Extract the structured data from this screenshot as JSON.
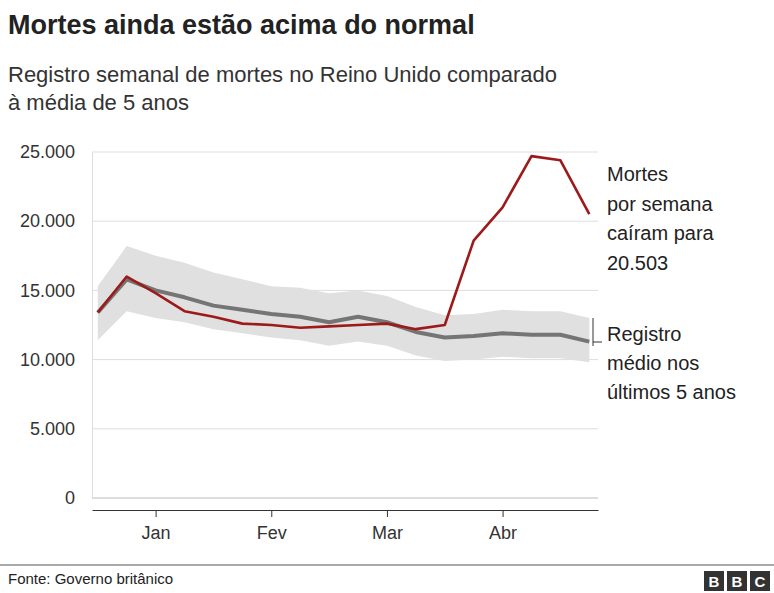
{
  "chart_data": {
    "type": "line",
    "title": "Mortes ainda estão acima do normal",
    "subtitle": [
      "Registro semanal de mortes no Reino Unido comparado",
      "à média de 5 anos"
    ],
    "source": "Fonte: Governo britânico",
    "logo": "BBC",
    "x": [
      0,
      1,
      2,
      3,
      4,
      5,
      6,
      7,
      8,
      9,
      10,
      11,
      12,
      13,
      14,
      15,
      16,
      17
    ],
    "xlim": [
      -0.2,
      17.3
    ],
    "xticks": [
      {
        "value": 2,
        "label": "Jan"
      },
      {
        "value": 6,
        "label": "Fev"
      },
      {
        "value": 10,
        "label": "Mar"
      },
      {
        "value": 14,
        "label": "Abr"
      }
    ],
    "ylim": [
      0,
      25000
    ],
    "yticks": [
      0,
      {
        "value": 5000,
        "label": "5.000"
      },
      {
        "value": 10000,
        "label": "10.000"
      },
      {
        "value": 15000,
        "label": "15.000"
      },
      {
        "value": 20000,
        "label": "20.000"
      },
      {
        "value": 25000,
        "label": "25.000"
      }
    ],
    "grid": true,
    "series": [
      {
        "color": "#9c1a1a",
        "annotation": [
          "Mortes",
          "por semana",
          "caíram para",
          "20.503"
        ],
        "values": [
          13400,
          16000,
          14800,
          13500,
          13100,
          12600,
          12500,
          12300,
          12400,
          12500,
          12600,
          12200,
          12500,
          18600,
          21000,
          24700,
          24400,
          20503
        ]
      },
      {
        "color": "#757575",
        "annotation": [
          "Registro",
          "médio nos",
          "últimos 5 anos"
        ],
        "values": [
          13400,
          15800,
          15000,
          14500,
          13900,
          13600,
          13300,
          13100,
          12700,
          13100,
          12700,
          12000,
          11600,
          11700,
          11900,
          11800,
          11800,
          11300
        ],
        "range_low": [
          11400,
          13500,
          13000,
          12700,
          12200,
          11900,
          11600,
          11400,
          11000,
          11300,
          11000,
          10300,
          9900,
          10000,
          10200,
          10100,
          10100,
          9800
        ],
        "range_high": [
          15300,
          18200,
          17500,
          17000,
          16300,
          15800,
          15300,
          15200,
          14800,
          15000,
          14600,
          13800,
          13200,
          13300,
          13600,
          13500,
          13500,
          13000
        ]
      }
    ]
  }
}
